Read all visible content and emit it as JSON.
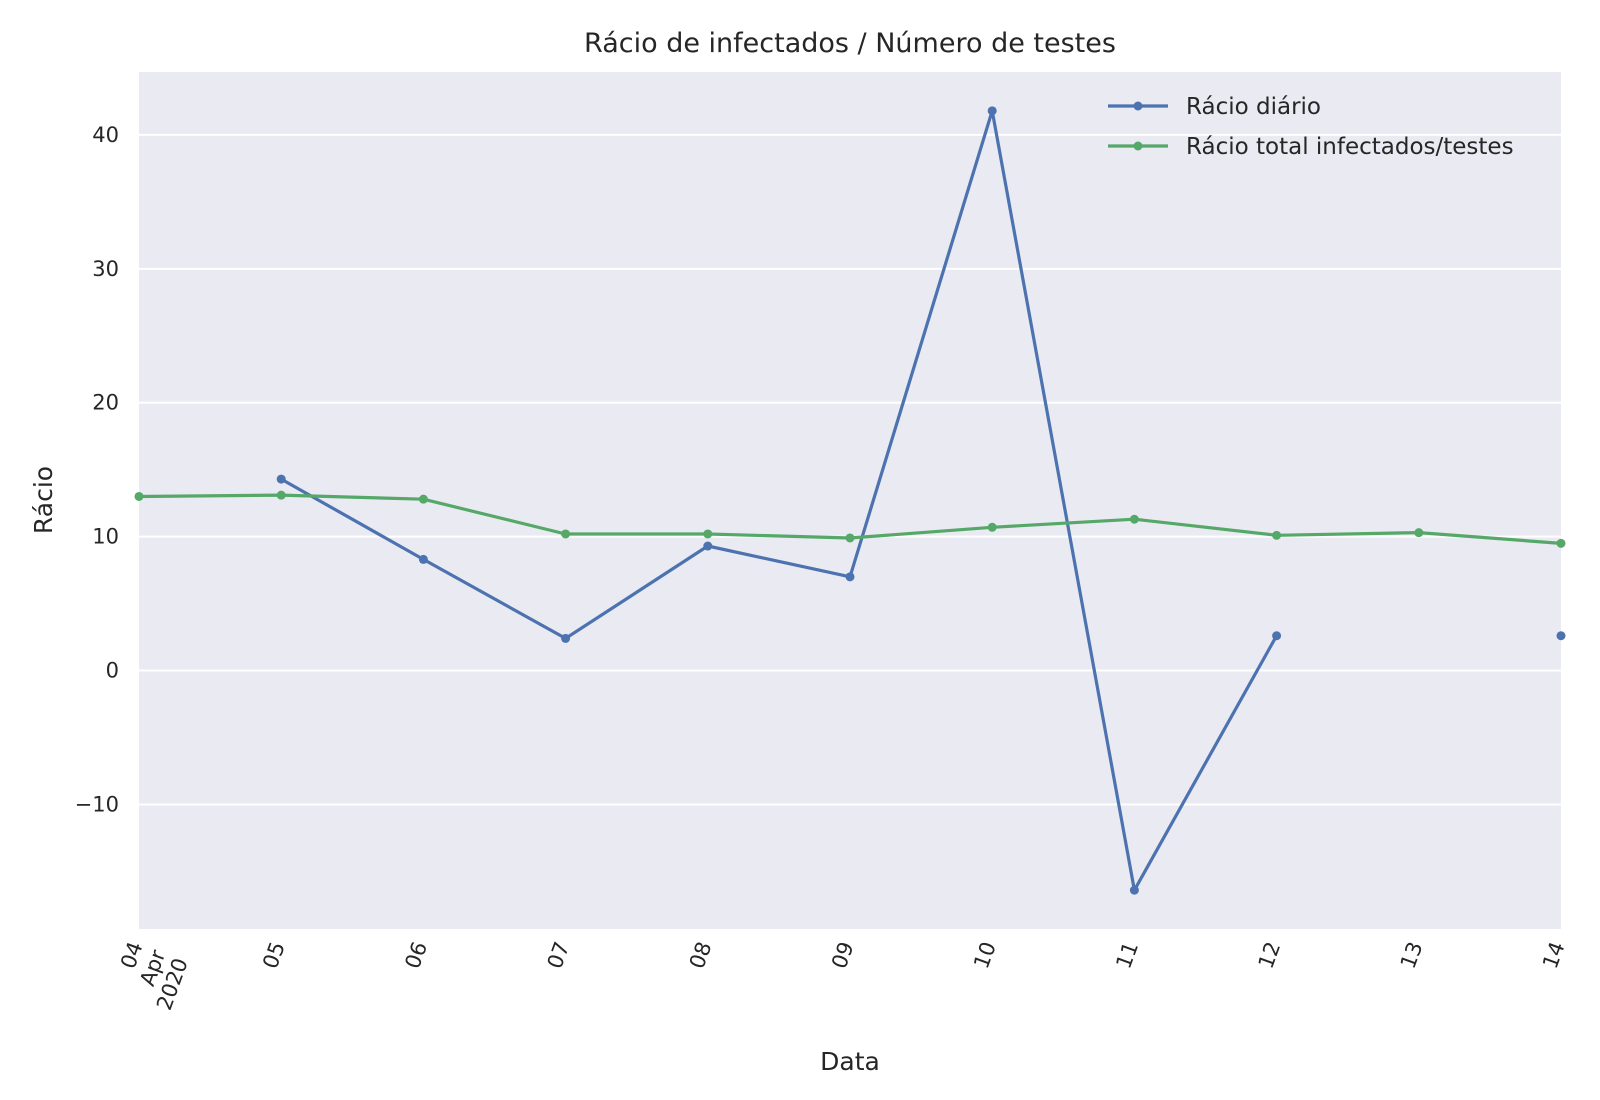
{
  "chart_data": {
    "type": "line",
    "title": "Rácio de infectados / Número de testes",
    "xlabel": "Data",
    "ylabel": "Rácio",
    "x_tick_labels": [
      [
        "04",
        "Apr",
        "2020"
      ],
      [
        "05"
      ],
      [
        "06"
      ],
      [
        "07"
      ],
      [
        "08"
      ],
      [
        "09"
      ],
      [
        "10"
      ],
      [
        "11"
      ],
      [
        "12"
      ],
      [
        "13"
      ],
      [
        "14"
      ]
    ],
    "x": [
      "2020-04-04",
      "2020-04-05",
      "2020-04-06",
      "2020-04-07",
      "2020-04-08",
      "2020-04-09",
      "2020-04-10",
      "2020-04-11",
      "2020-04-12",
      "2020-04-13",
      "2020-04-14"
    ],
    "xlim": [
      "2020-04-04",
      "2020-04-14"
    ],
    "ylim": [
      -19.3,
      44.7
    ],
    "y_ticks": [
      -10,
      0,
      10,
      20,
      30,
      40
    ],
    "y_tick_labels": [
      "−10",
      "0",
      "10",
      "20",
      "30",
      "40"
    ],
    "grid": true,
    "legend": "top-right",
    "series": [
      {
        "name": "Rácio diário",
        "color": "#4c72b0",
        "values": [
          null,
          14.3,
          8.3,
          2.4,
          9.3,
          7.0,
          41.8,
          -16.4,
          2.6,
          null,
          2.6
        ]
      },
      {
        "name": "Rácio total infectados/testes",
        "color": "#55a868",
        "values": [
          13.0,
          13.1,
          12.8,
          10.2,
          10.2,
          9.9,
          10.7,
          11.3,
          10.1,
          10.3,
          9.5
        ]
      }
    ]
  }
}
